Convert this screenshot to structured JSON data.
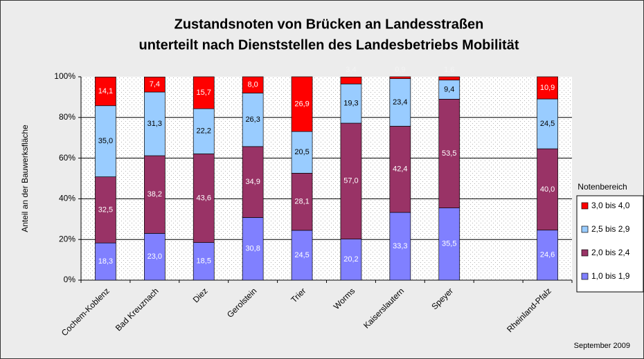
{
  "chart_data": {
    "type": "stacked_bar",
    "title": "Zustandsnoten von Brücken an Landesstraßen",
    "subtitle": "unterteilt nach Dienststellen des Landesbetriebs Mobilität",
    "y_label": "Anteil an der Bauwerksfläche",
    "legend_title": "Notenbereich",
    "legend": "right",
    "note": "September 2009",
    "grid": true,
    "categories": [
      "Cochem-Koblenz",
      "Bad Kreuznach",
      "Diez",
      "Gerolstein",
      "Trier",
      "Worms",
      "Kaiserslautern",
      "Speyer",
      null,
      "Rheinland-Pfalz"
    ],
    "series": [
      {
        "name": "1,0 bis 1,9",
        "color": "#8080ff",
        "values": [
          18.3,
          23.0,
          18.5,
          30.8,
          24.5,
          20.2,
          33.3,
          35.5,
          null,
          24.6
        ],
        "value_labels": [
          "18,3",
          "23,0",
          "18,5",
          "30,8",
          "24,5",
          "20,2",
          "33,3",
          "35,5",
          null,
          "24,6"
        ]
      },
      {
        "name": "2,0 bis 2,4",
        "color": "#993366",
        "values": [
          32.5,
          38.2,
          43.6,
          34.9,
          28.1,
          57.0,
          42.4,
          53.5,
          null,
          40.0
        ],
        "value_labels": [
          "32,5",
          "38,2",
          "43,6",
          "34,9",
          "28,1",
          "57,0",
          "42,4",
          "53,5",
          null,
          "40,0"
        ]
      },
      {
        "name": "2,5 bis 2,9",
        "color": "#99ccff",
        "values": [
          35.0,
          31.3,
          22.2,
          26.3,
          20.5,
          19.3,
          23.4,
          9.4,
          null,
          24.5
        ],
        "value_labels": [
          "35,0",
          "31,3",
          "22,2",
          "26,3",
          "20,5",
          "19,3",
          "23,4",
          "9,4",
          null,
          "24,5"
        ]
      },
      {
        "name": "3,0 bis 4,0",
        "color": "#ff0000",
        "values": [
          14.1,
          7.4,
          15.7,
          8.0,
          26.9,
          3.4,
          0.9,
          1.6,
          null,
          10.9
        ],
        "value_labels": [
          "14,1",
          "7,4",
          "15,7",
          "8,0",
          "26,9",
          "3,4",
          "0,9",
          "1,6",
          null,
          "10,9"
        ]
      }
    ],
    "ylim": [
      0,
      100
    ],
    "yticks": [
      {
        "value": 0,
        "label": "0%"
      },
      {
        "value": 20,
        "label": "20%"
      },
      {
        "value": 40,
        "label": "40%"
      },
      {
        "value": 60,
        "label": "60%"
      },
      {
        "value": 80,
        "label": "80%"
      },
      {
        "value": 100,
        "label": "100%"
      }
    ]
  }
}
